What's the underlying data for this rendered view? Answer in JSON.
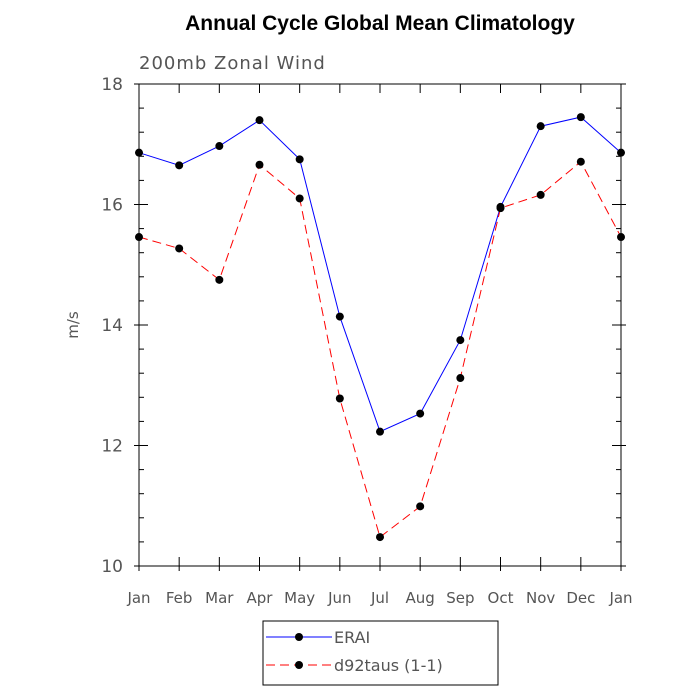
{
  "chart_data": {
    "type": "line",
    "title": "Annual Cycle Global Mean Climatology",
    "subtitle": "200mb Zonal Wind",
    "xlabel": "",
    "ylabel": "m/s",
    "ylim": [
      10,
      18
    ],
    "yticks": [
      10,
      12,
      14,
      16,
      18
    ],
    "yticks_labels": [
      "10",
      "12",
      "14",
      "16",
      "18"
    ],
    "categories": [
      "Jan",
      "Feb",
      "Mar",
      "Apr",
      "May",
      "Jun",
      "Jul",
      "Aug",
      "Sep",
      "Oct",
      "Nov",
      "Dec",
      "Jan"
    ],
    "series": [
      {
        "name": "ERAI",
        "color": "#0000ff",
        "dash": "solid",
        "values": [
          16.86,
          16.65,
          16.97,
          17.4,
          16.75,
          14.14,
          12.23,
          12.53,
          13.75,
          15.96,
          17.3,
          17.45,
          16.86
        ]
      },
      {
        "name": "d92taus (1-1)",
        "color": "#ff0000",
        "dash": "dashed",
        "values": [
          15.46,
          15.27,
          14.75,
          16.66,
          16.1,
          12.78,
          10.48,
          10.99,
          13.12,
          15.94,
          16.16,
          16.71,
          15.46
        ]
      }
    ],
    "legend_position": "bottom-center"
  }
}
